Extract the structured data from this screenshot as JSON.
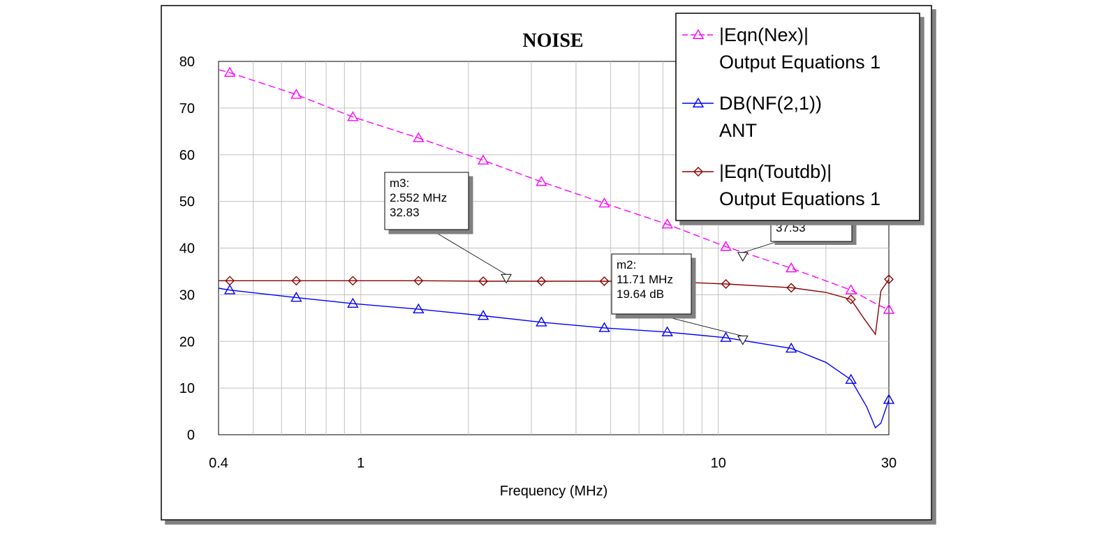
{
  "chart_data": {
    "type": "line",
    "title": "NOISE",
    "xlabel": "Frequency (MHz)",
    "ylabel": "",
    "xscale": "log",
    "xlim": [
      0.4,
      30
    ],
    "ylim": [
      0,
      80
    ],
    "x_ticks": [
      "0.4",
      "1",
      "10",
      "30"
    ],
    "y_ticks": [
      "0",
      "10",
      "20",
      "30",
      "40",
      "50",
      "60",
      "70",
      "80"
    ],
    "grid": true,
    "legend_position": "top-right",
    "series": [
      {
        "name": "|Eqn(Nex)|",
        "source": "Output Equations 1",
        "color": "#ff00ff",
        "dash": "dashed",
        "marker": "triangle-up",
        "x": [
          0.4,
          0.43,
          0.66,
          0.95,
          1.45,
          2.2,
          3.2,
          4.8,
          7.2,
          10.5,
          16.0,
          23.5,
          28.0,
          30.0
        ],
        "values": [
          78.2,
          77.6,
          72.9,
          68.1,
          63.6,
          58.8,
          54.2,
          49.6,
          45.1,
          40.3,
          35.7,
          31.0,
          27.8,
          26.8
        ],
        "marker_x": [
          0.43,
          0.66,
          0.95,
          1.45,
          2.2,
          3.2,
          4.8,
          7.2,
          10.5,
          16.0,
          23.5,
          30.0
        ]
      },
      {
        "name": "DB(NF(2,1))",
        "source": "ANT",
        "color": "#0000ff",
        "dash": "solid",
        "marker": "triangle-up",
        "x": [
          0.4,
          0.43,
          0.66,
          0.95,
          1.45,
          2.2,
          3.2,
          4.8,
          7.2,
          10.5,
          16.0,
          20.0,
          23.5,
          26.0,
          27.5,
          28.5,
          30.0
        ],
        "values": [
          31.4,
          31.0,
          29.4,
          28.1,
          26.9,
          25.5,
          24.1,
          22.9,
          22.0,
          20.8,
          18.5,
          15.5,
          11.8,
          6.0,
          1.5,
          2.5,
          7.5
        ],
        "marker_x": [
          0.43,
          0.66,
          0.95,
          1.45,
          2.2,
          3.2,
          4.8,
          7.2,
          10.5,
          16.0,
          23.5,
          30.0
        ]
      },
      {
        "name": "|Eqn(Toutdb)|",
        "source": "Output Equations 1",
        "color": "#8b0000",
        "dash": "solid",
        "marker": "diamond",
        "x": [
          0.4,
          0.43,
          0.66,
          0.95,
          1.45,
          2.2,
          3.2,
          4.8,
          7.2,
          10.5,
          16.0,
          20.0,
          23.5,
          25.5,
          27.5,
          28.5,
          30.0
        ],
        "values": [
          33.0,
          33.0,
          33.0,
          33.0,
          33.0,
          32.9,
          32.9,
          32.9,
          32.8,
          32.3,
          31.5,
          30.5,
          29.0,
          25.0,
          21.5,
          30.8,
          33.3
        ],
        "marker_x": [
          0.43,
          0.66,
          0.95,
          1.45,
          2.2,
          3.2,
          4.8,
          7.2,
          10.5,
          16.0,
          23.5,
          30.0
        ]
      }
    ],
    "markers": [
      {
        "name": "m3:",
        "lines": [
          "2.552 MHz",
          "32.83"
        ],
        "x": 2.552,
        "y": 32.83
      },
      {
        "name": "m2:",
        "lines": [
          "11.71 MHz",
          "19.64 dB"
        ],
        "x": 11.71,
        "y": 19.64
      },
      {
        "name": "",
        "lines": [
          "37.53"
        ],
        "x": 11.71,
        "y": 37.53
      }
    ]
  }
}
